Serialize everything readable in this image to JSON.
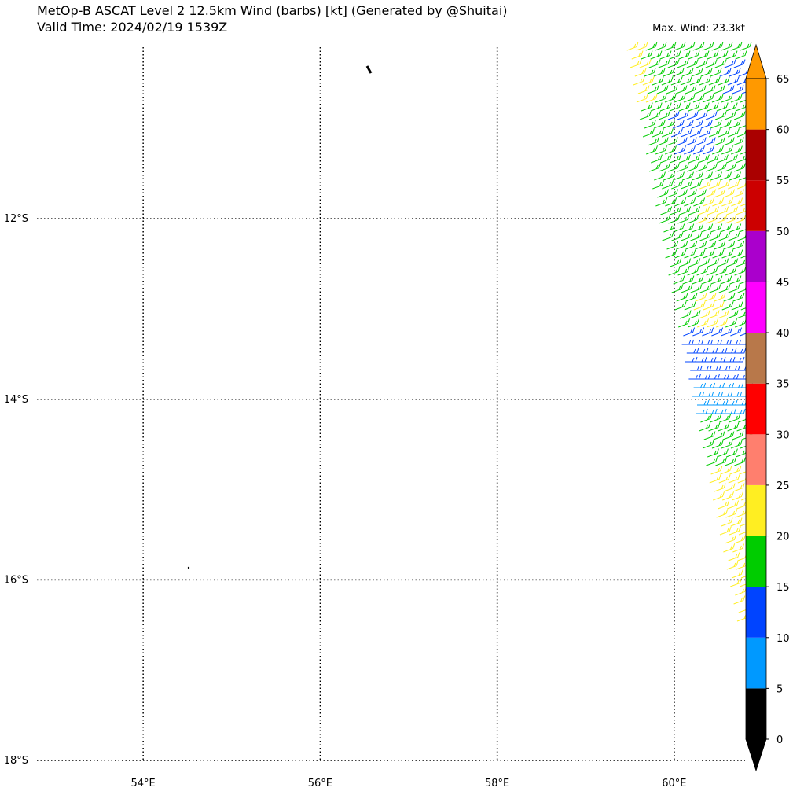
{
  "header": {
    "title": "MetOp-B ASCAT Level 2 12.5km Wind (barbs) [kt] (Generated by @Shuitai)",
    "valid_time": "Valid Time: 2024/02/19 1539Z",
    "max_wind": "Max. Wind: 23.3kt"
  },
  "map": {
    "lonlim": [
      52.8,
      60.8
    ],
    "latlim": [
      -18,
      -10.1
    ],
    "lon_labels": [
      {
        "value": 54,
        "label": "54°E"
      },
      {
        "value": 56,
        "label": "56°E"
      },
      {
        "value": 58,
        "label": "58°E"
      },
      {
        "value": 60,
        "label": "60°E"
      }
    ],
    "lat_labels": [
      {
        "value": -12,
        "label": "12°S"
      },
      {
        "value": -14,
        "label": "14°S"
      },
      {
        "value": -16,
        "label": "16°S"
      },
      {
        "value": -18,
        "label": "18°S"
      }
    ]
  },
  "colorbar": {
    "levels": [
      0,
      5,
      10,
      15,
      20,
      25,
      30,
      35,
      40,
      45,
      50,
      55,
      60,
      65
    ],
    "colors": [
      "#000000",
      "#0099ff",
      "#0044ff",
      "#00cc00",
      "#ffee22",
      "#ff7f6e",
      "#ff0000",
      "#b8784a",
      "#ff00ff",
      "#aa00cc",
      "#cc0000",
      "#aa0000",
      "#ff9900"
    ]
  }
}
